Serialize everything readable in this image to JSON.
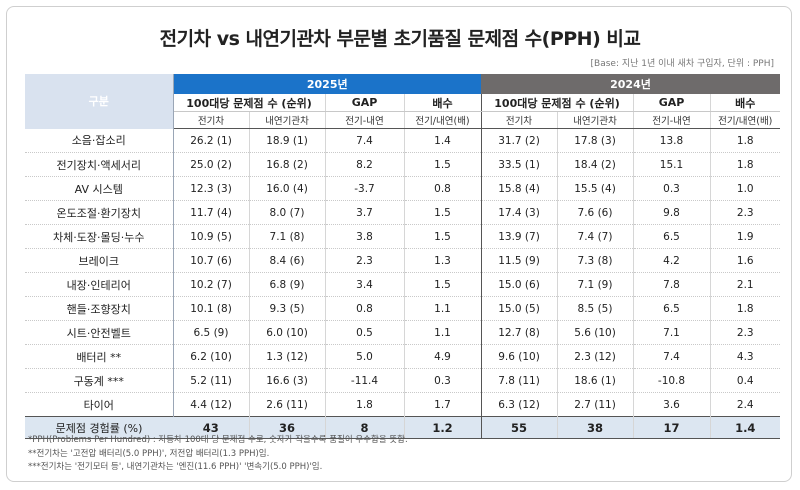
{
  "title": "전기차 vs 내연기관차 부문별 초기품질 문제점 수(PPH) 비교",
  "base_note": "[Base: 지난 1년 이내 새차 구입자, 단위 : PPH]",
  "headers": {
    "gubun": "구분",
    "year_2025": "2025년",
    "year_2024": "2024년",
    "pph_group": "100대당 문제점 수 (순위)",
    "gap": "GAP",
    "ratio": "배수",
    "ev": "전기차",
    "ice": "내연기관차",
    "gap_sub": "전기-내연",
    "ratio_sub_2025": "전기/내연(배)",
    "ratio_sub_2024": "전기/내연(배)"
  },
  "rows": [
    {
      "label": "소음·잡소리",
      "y2025": [
        "26.2 (1)",
        "18.9 (1)",
        "7.4",
        "1.4"
      ],
      "y2024": [
        "31.7 (2)",
        "17.8 (3)",
        "13.8",
        "1.8"
      ]
    },
    {
      "label": "전기장치·액세서리",
      "y2025": [
        "25.0 (2)",
        "16.8 (2)",
        "8.2",
        "1.5"
      ],
      "y2024": [
        "33.5 (1)",
        "18.4 (2)",
        "15.1",
        "1.8"
      ]
    },
    {
      "label": "AV 시스템",
      "y2025": [
        "12.3 (3)",
        "16.0 (4)",
        "-3.7",
        "0.8"
      ],
      "y2024": [
        "15.8 (4)",
        "15.5 (4)",
        "0.3",
        "1.0"
      ]
    },
    {
      "label": "온도조절·환기장치",
      "y2025": [
        "11.7 (4)",
        "8.0 (7)",
        "3.7",
        "1.5"
      ],
      "y2024": [
        "17.4 (3)",
        "7.6 (6)",
        "9.8",
        "2.3"
      ]
    },
    {
      "label": "차체·도장·몰딩·누수",
      "y2025": [
        "10.9 (5)",
        "7.1 (8)",
        "3.8",
        "1.5"
      ],
      "y2024": [
        "13.9 (7)",
        "7.4 (7)",
        "6.5",
        "1.9"
      ]
    },
    {
      "label": "브레이크",
      "y2025": [
        "10.7 (6)",
        "8.4 (6)",
        "2.3",
        "1.3"
      ],
      "y2024": [
        "11.5 (9)",
        "7.3 (8)",
        "4.2",
        "1.6"
      ]
    },
    {
      "label": "내장·인테리어",
      "y2025": [
        "10.2 (7)",
        "6.8 (9)",
        "3.4",
        "1.5"
      ],
      "y2024": [
        "15.0 (6)",
        "7.1 (9)",
        "7.8",
        "2.1"
      ]
    },
    {
      "label": "핸들·조향장치",
      "y2025": [
        "10.1 (8)",
        "9.3 (5)",
        "0.8",
        "1.1"
      ],
      "y2024": [
        "15.0 (5)",
        "8.5 (5)",
        "6.5",
        "1.8"
      ]
    },
    {
      "label": "시트·안전벨트",
      "y2025": [
        "6.5 (9)",
        "6.0 (10)",
        "0.5",
        "1.1"
      ],
      "y2024": [
        "12.7 (8)",
        "5.6 (10)",
        "7.1",
        "2.3"
      ]
    },
    {
      "label": "배터리 **",
      "y2025": [
        "6.2 (10)",
        "1.3 (12)",
        "5.0",
        "4.9"
      ],
      "y2024": [
        "9.6 (10)",
        "2.3 (12)",
        "7.4",
        "4.3"
      ]
    },
    {
      "label": "구동계 ***",
      "y2025": [
        "5.2 (11)",
        "16.6 (3)",
        "-11.4",
        "0.3"
      ],
      "y2024": [
        "7.8 (11)",
        "18.6 (1)",
        "-10.8",
        "0.4"
      ]
    },
    {
      "label": "타이어",
      "y2025": [
        "4.4 (12)",
        "2.6 (11)",
        "1.8",
        "1.7"
      ],
      "y2024": [
        "6.3 (12)",
        "2.7 (11)",
        "3.6",
        "2.4"
      ]
    }
  ],
  "total": {
    "label": "문제점 경험률 (%)",
    "y2025": [
      "43",
      "36",
      "8",
      "1.2"
    ],
    "y2024": [
      "55",
      "38",
      "17",
      "1.4"
    ]
  },
  "footnotes": [
    "*PPH(Problems Per Hundred) : 자동차 100대 당 문제점 수로, 숫자가 작을수록 품질이 우수함을 뜻함.",
    "**전기차는 '고전압 배터리(5.0 PPH)', 저전압 배터리(1.3 PPH)임.",
    "***전기차는 '전기모터 등', 내연기관차는 '엔진(11.6 PPH)' '변속기(5.0 PPH)'임."
  ]
}
